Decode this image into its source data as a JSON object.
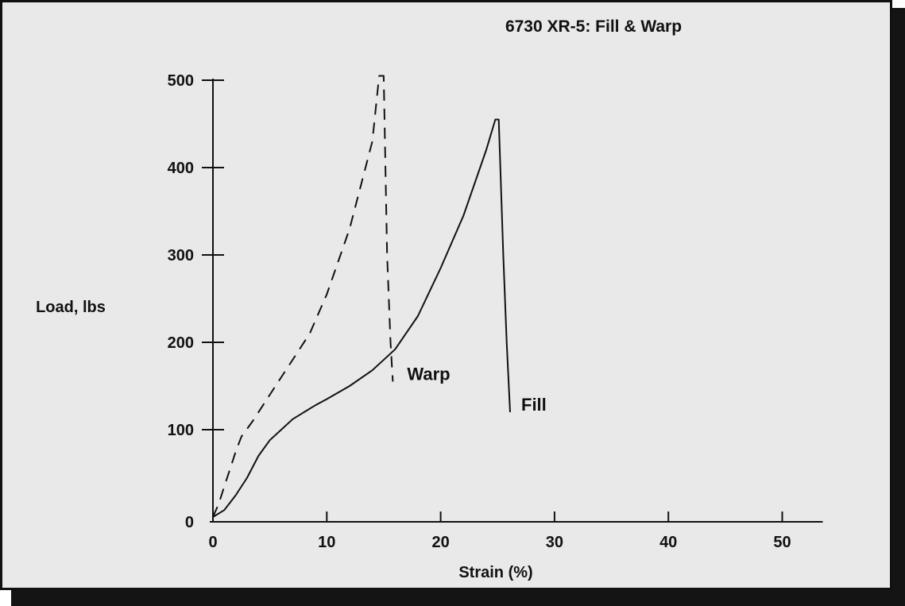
{
  "chart_data": {
    "type": "line",
    "title": "6730 XR-5: Fill & Warp",
    "xlabel": "Strain (%)",
    "ylabel": "Load, lbs",
    "xlim": [
      0,
      53
    ],
    "ylim": [
      0,
      500
    ],
    "xticks": [
      0,
      10,
      20,
      30,
      40,
      50
    ],
    "yticks": [
      0,
      100,
      200,
      300,
      400,
      500
    ],
    "grid": false,
    "legend": "none",
    "series": [
      {
        "name": "Warp",
        "style": "dashed",
        "points": [
          [
            0,
            0
          ],
          [
            0.5,
            15
          ],
          [
            1,
            35
          ],
          [
            1.5,
            55
          ],
          [
            2,
            75
          ],
          [
            2.5,
            92
          ],
          [
            3.5,
            110
          ],
          [
            5,
            140
          ],
          [
            7,
            180
          ],
          [
            8.5,
            210
          ],
          [
            10,
            255
          ],
          [
            12,
            330
          ],
          [
            14,
            430
          ],
          [
            14.6,
            505
          ],
          [
            15.0,
            505
          ],
          [
            15.3,
            300
          ],
          [
            15.6,
            200
          ],
          [
            15.8,
            155
          ]
        ]
      },
      {
        "name": "Fill",
        "style": "solid",
        "points": [
          [
            0,
            0
          ],
          [
            1,
            8
          ],
          [
            2,
            25
          ],
          [
            3,
            45
          ],
          [
            4,
            70
          ],
          [
            5,
            88
          ],
          [
            6,
            100
          ],
          [
            7,
            112
          ],
          [
            8,
            120
          ],
          [
            9,
            128
          ],
          [
            10,
            135
          ],
          [
            12,
            150
          ],
          [
            14,
            168
          ],
          [
            16,
            192
          ],
          [
            18,
            230
          ],
          [
            20,
            285
          ],
          [
            22,
            345
          ],
          [
            24,
            420
          ],
          [
            24.8,
            455
          ],
          [
            25.1,
            455
          ],
          [
            25.5,
            300
          ],
          [
            25.8,
            200
          ],
          [
            26.1,
            120
          ]
        ]
      }
    ]
  }
}
